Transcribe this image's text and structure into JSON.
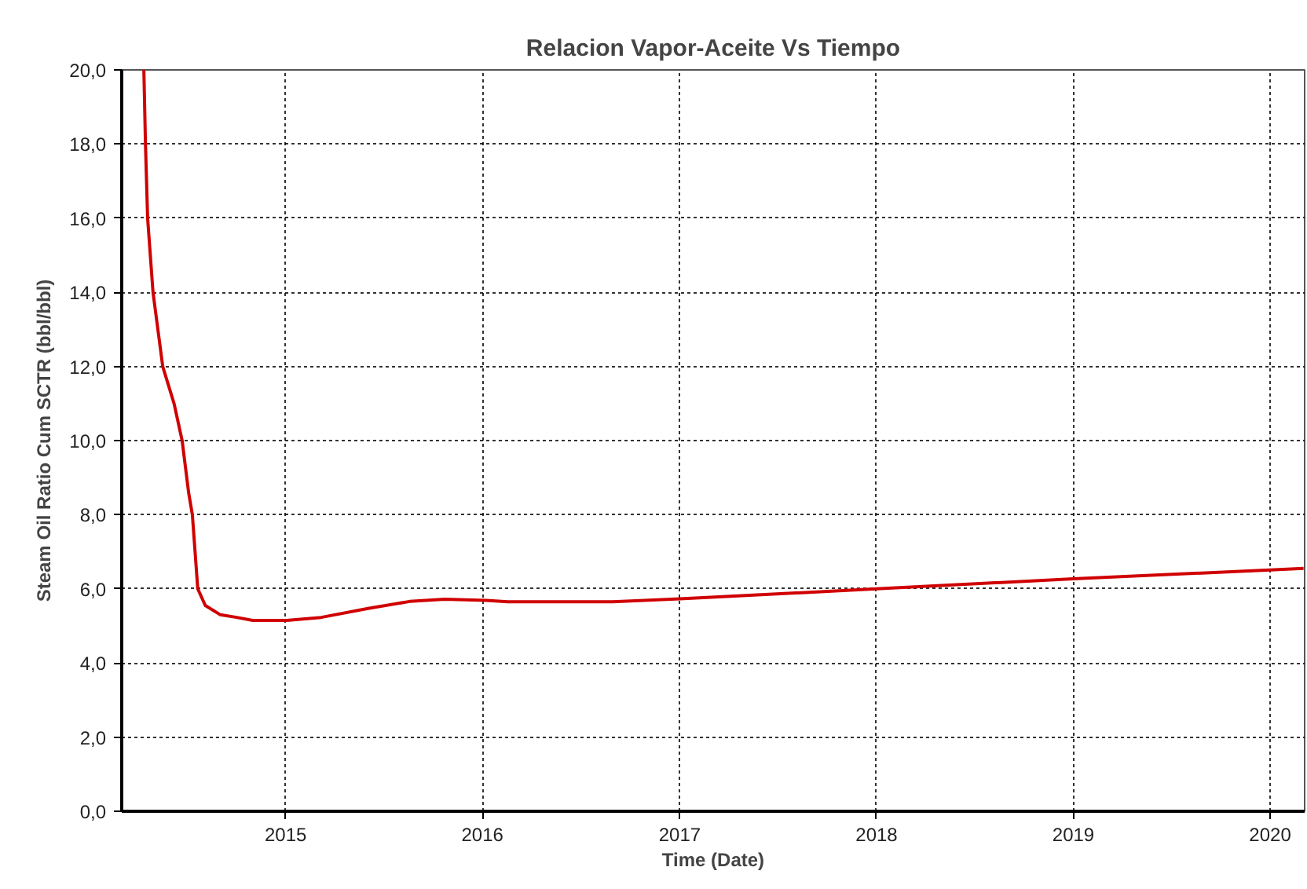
{
  "chart_data": {
    "type": "line",
    "title": "Relacion Vapor-Aceite Vs Tiempo",
    "xlabel": "Time (Date)",
    "ylabel": "Steam Oil Ratio Cum SCTR (bbl/bbl)",
    "x": [
      "2014-04-13",
      "2014-04-16",
      "2014-04-20",
      "2014-04-30",
      "2014-05-18",
      "2014-06-08",
      "2014-06-23",
      "2014-07-05",
      "2014-07-12",
      "2014-07-22",
      "2014-08-05",
      "2014-09-02",
      "2014-10-02",
      "2014-11-01",
      "2015-01-03",
      "2015-03-08",
      "2015-06-03",
      "2015-08-19",
      "2015-10-23",
      "2016-01-08",
      "2016-02-17",
      "2016-06-03",
      "2016-08-29",
      "2017-01-01",
      "2018-01-01",
      "2019-01-01",
      "2020-01-01",
      "2020-03-03"
    ],
    "series": [
      {
        "color": "#d00000",
        "values": [
          20.0,
          18.0,
          16.0,
          14.0,
          12.0,
          11.0,
          10.0,
          8.6,
          8.0,
          6.0,
          5.55,
          5.3,
          5.23,
          5.15,
          5.15,
          5.23,
          5.47,
          5.66,
          5.72,
          5.69,
          5.65,
          5.65,
          5.65,
          5.73,
          6.0,
          6.27,
          6.51,
          6.55
        ]
      }
    ],
    "xlim": [
      "2014-03-03",
      "2020-03-05"
    ],
    "xticks": [
      {
        "value": "2015-01-01",
        "label": "2015"
      },
      {
        "value": "2016-01-01",
        "label": "2016"
      },
      {
        "value": "2017-01-01",
        "label": "2017"
      },
      {
        "value": "2018-01-01",
        "label": "2018"
      },
      {
        "value": "2019-01-01",
        "label": "2019"
      },
      {
        "value": "2020-01-01",
        "label": "2020"
      }
    ],
    "ylim": [
      0,
      20
    ],
    "yticks": [
      {
        "value": 0,
        "label": "0,0"
      },
      {
        "value": 2,
        "label": "2,0"
      },
      {
        "value": 4,
        "label": "4,0"
      },
      {
        "value": 6,
        "label": "6,0"
      },
      {
        "value": 8,
        "label": "8,0"
      },
      {
        "value": 10,
        "label": "10,0"
      },
      {
        "value": 12,
        "label": "12,0"
      },
      {
        "value": 14,
        "label": "14,0"
      },
      {
        "value": 16,
        "label": "16,0"
      },
      {
        "value": 18,
        "label": "18,0"
      },
      {
        "value": 20,
        "label": "20,0"
      }
    ],
    "grid": true,
    "line_style": "solid"
  }
}
